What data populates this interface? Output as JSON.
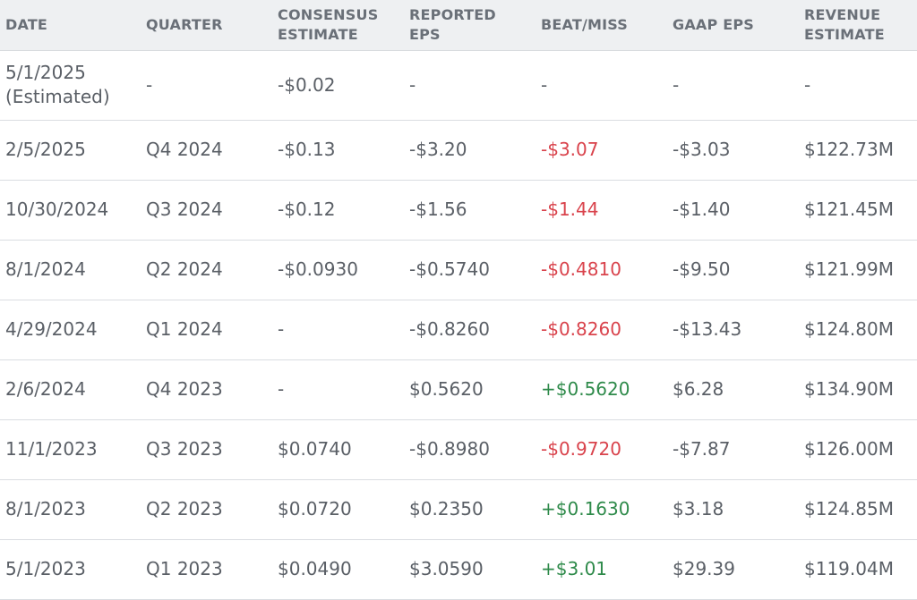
{
  "columns": {
    "date": "DATE",
    "quarter": "QUARTER",
    "consensus_line1": "CONSENSUS",
    "consensus_line2": "ESTIMATE",
    "reported_line1": "REPORTED",
    "reported_line2": "EPS",
    "beat_miss": "BEAT/MISS",
    "gaap_eps": "GAAP EPS",
    "revenue_line1": "REVENUE",
    "revenue_line2": "ESTIMATE"
  },
  "colors": {
    "negative": "#d9434c",
    "positive": "#2e8a4a",
    "header_bg": "#eef0f2"
  },
  "rows": [
    {
      "date": "5/1/2025",
      "date_note": "(Estimated)",
      "quarter": "-",
      "consensus": "-$0.02",
      "reported": "-",
      "beat_miss": "-",
      "gaap_eps": "-",
      "revenue": "-"
    },
    {
      "date": "2/5/2025",
      "quarter": "Q4 2024",
      "consensus": "-$0.13",
      "reported": "-$3.20",
      "beat_miss": "-$3.07",
      "gaap_eps": "-$3.03",
      "revenue": "$122.73M"
    },
    {
      "date": "10/30/2024",
      "quarter": "Q3 2024",
      "consensus": "-$0.12",
      "reported": "-$1.56",
      "beat_miss": "-$1.44",
      "gaap_eps": "-$1.40",
      "revenue": "$121.45M"
    },
    {
      "date": "8/1/2024",
      "quarter": "Q2 2024",
      "consensus": "-$0.0930",
      "reported": "-$0.5740",
      "beat_miss": "-$0.4810",
      "gaap_eps": "-$9.50",
      "revenue": "$121.99M"
    },
    {
      "date": "4/29/2024",
      "quarter": "Q1 2024",
      "consensus": "-",
      "reported": "-$0.8260",
      "beat_miss": "-$0.8260",
      "gaap_eps": "-$13.43",
      "revenue": "$124.80M"
    },
    {
      "date": "2/6/2024",
      "quarter": "Q4 2023",
      "consensus": "-",
      "reported": "$0.5620",
      "beat_miss": "+$0.5620",
      "gaap_eps": "$6.28",
      "revenue": "$134.90M"
    },
    {
      "date": "11/1/2023",
      "quarter": "Q3 2023",
      "consensus": "$0.0740",
      "reported": "-$0.8980",
      "beat_miss": "-$0.9720",
      "gaap_eps": "-$7.87",
      "revenue": "$126.00M"
    },
    {
      "date": "8/1/2023",
      "quarter": "Q2 2023",
      "consensus": "$0.0720",
      "reported": "$0.2350",
      "beat_miss": "+$0.1630",
      "gaap_eps": "$3.18",
      "revenue": "$124.85M"
    },
    {
      "date": "5/1/2023",
      "quarter": "Q1 2023",
      "consensus": "$0.0490",
      "reported": "$3.0590",
      "beat_miss": "+$3.01",
      "gaap_eps": "$29.39",
      "revenue": "$119.04M"
    }
  ]
}
